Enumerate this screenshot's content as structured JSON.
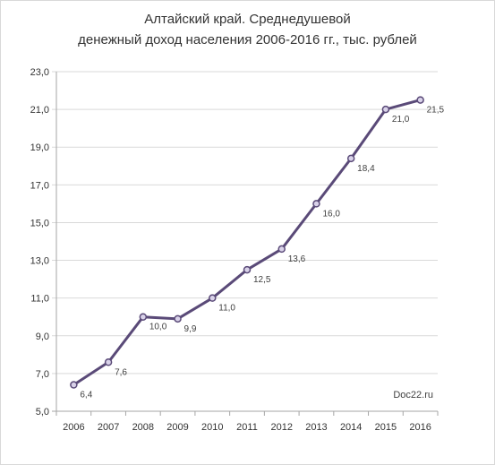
{
  "chart_data": {
    "type": "line",
    "title_line1": "Алтайский край. Среднедушевой",
    "title_line2": "денежный доход населения  2006-2016 гг., тыс. рублей",
    "xlabel": "",
    "ylabel": "",
    "categories": [
      "2006",
      "2007",
      "2008",
      "2009",
      "2010",
      "2011",
      "2012",
      "2013",
      "2014",
      "2015",
      "2016"
    ],
    "values": [
      6.4,
      7.6,
      10.0,
      9.9,
      11.0,
      12.5,
      13.6,
      16.0,
      18.4,
      21.0,
      21.5
    ],
    "value_labels": [
      "6,4",
      "7,6",
      "10,0",
      "9,9",
      "11,0",
      "12,5",
      "13,6",
      "16,0",
      "18,4",
      "21,0",
      "21,5"
    ],
    "y_ticks": [
      "5,0",
      "7,0",
      "9,0",
      "11,0",
      "13,0",
      "15,0",
      "17,0",
      "19,0",
      "21,0",
      "23,0"
    ],
    "y_tick_values": [
      5,
      7,
      9,
      11,
      13,
      15,
      17,
      19,
      21,
      23
    ],
    "ylim": [
      5,
      23
    ],
    "grid": true,
    "legend": "none",
    "watermark": "Doc22.ru",
    "line_color": "#5a4a78",
    "marker_fill": "#d9d2e9",
    "grid_color": "#d9d9d9"
  }
}
